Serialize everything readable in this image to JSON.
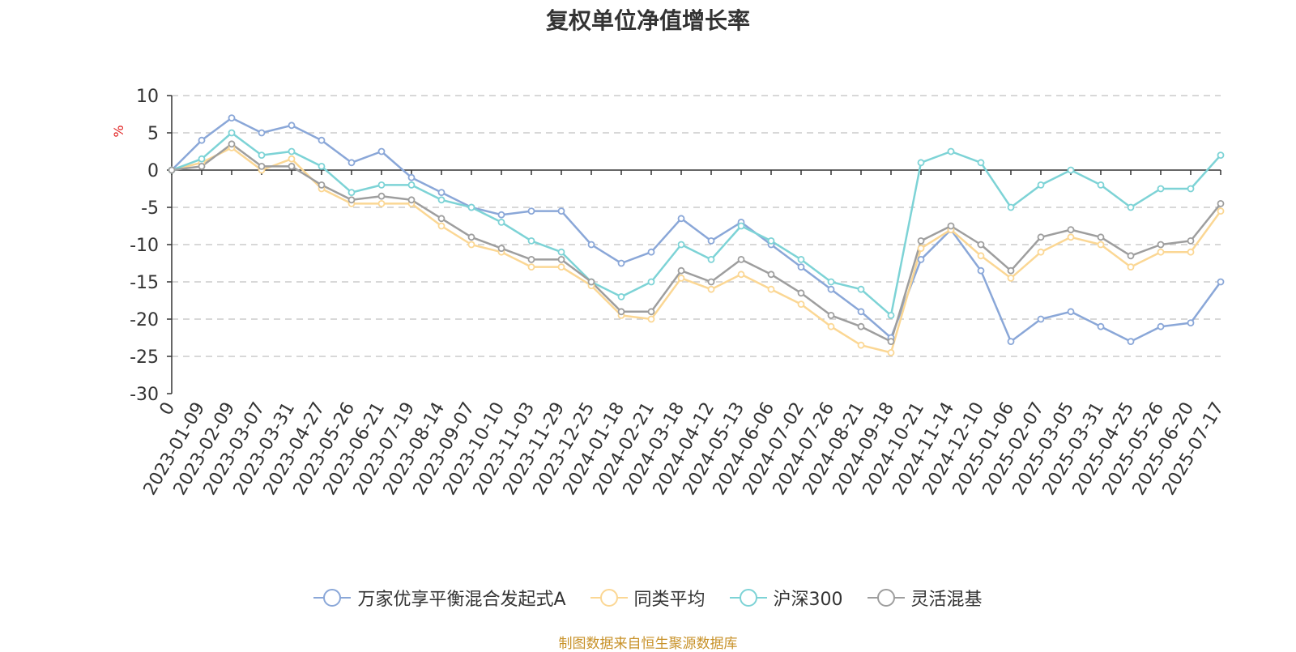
{
  "chart_data": {
    "type": "line",
    "title": "复权单位净值增长率",
    "ylabel": "%",
    "ylim": [
      -30,
      10
    ],
    "yticks": [
      10,
      5,
      0,
      -5,
      -10,
      -15,
      -20,
      -25,
      -30
    ],
    "grid": true,
    "legend_position": "bottom",
    "x_tick_labels": [
      "0",
      "2023-01-09",
      "2023-02-09",
      "2023-03-07",
      "2023-03-31",
      "2023-04-27",
      "2023-05-26",
      "2023-06-21",
      "2023-07-19",
      "2023-08-14",
      "2023-09-07",
      "2023-10-10",
      "2023-11-03",
      "2023-11-29",
      "2023-12-25",
      "2024-01-18",
      "2024-02-21",
      "2024-03-18",
      "2024-04-12",
      "2024-05-13",
      "2024-06-06",
      "2024-07-02",
      "2024-07-26",
      "2024-08-21",
      "2024-09-18",
      "2024-10-21",
      "2024-11-14",
      "2024-12-10",
      "2025-01-06",
      "2025-02-07",
      "2025-03-05",
      "2025-03-31",
      "2025-04-25",
      "2025-05-26",
      "2025-06-20",
      "2025-07-17"
    ],
    "x": [
      "0",
      "2023-01-09",
      "2023-02-09",
      "2023-03-07",
      "2023-03-31",
      "2023-04-27",
      "2023-05-26",
      "2023-06-21",
      "2023-07-19",
      "2023-08-14",
      "2023-09-07",
      "2023-10-10",
      "2023-11-03",
      "2023-11-29",
      "2023-12-25",
      "2024-01-18",
      "2024-02-21",
      "2024-03-18",
      "2024-04-12",
      "2024-05-13",
      "2024-06-06",
      "2024-07-02",
      "2024-07-26",
      "2024-08-21",
      "2024-09-18",
      "2024-10-21",
      "2024-11-14",
      "2024-12-10",
      "2025-01-06",
      "2025-02-07",
      "2025-03-05",
      "2025-03-31",
      "2025-04-25",
      "2025-05-26",
      "2025-06-20",
      "2025-07-17"
    ],
    "series": [
      {
        "name": "万家优享平衡混合发起式A",
        "color": "#8aa7d8",
        "values": [
          0,
          4,
          7,
          5,
          6,
          4,
          1,
          2.5,
          -1,
          -3,
          -5,
          -6,
          -5.5,
          -5.5,
          -10,
          -12.5,
          -11,
          -6.5,
          -9.5,
          -7,
          -10,
          -13,
          -16,
          -19,
          -22.5,
          -12,
          -8,
          -13.5,
          -23,
          -20,
          -19,
          -21,
          -23,
          -21,
          -20.5,
          -15
        ]
      },
      {
        "name": "同类平均",
        "color": "#fbd794",
        "values": [
          0,
          1,
          3,
          0,
          1.5,
          -2.5,
          -4.5,
          -4.5,
          -4.5,
          -7.5,
          -10,
          -11,
          -13,
          -13,
          -15.5,
          -19.5,
          -20,
          -14.5,
          -16,
          -14,
          -16,
          -18,
          -21,
          -23.5,
          -24.5,
          -10.5,
          -8,
          -11.5,
          -14.5,
          -11,
          -9,
          -10,
          -13,
          -11,
          -11,
          -5.5
        ]
      },
      {
        "name": "沪深300",
        "color": "#7dd3d6",
        "values": [
          0,
          1.5,
          5,
          2,
          2.5,
          0.5,
          -3,
          -2,
          -2,
          -4,
          -5,
          -7,
          -9.5,
          -11,
          -15,
          -17,
          -15,
          -10,
          -12,
          -7.5,
          -9.5,
          -12,
          -15,
          -16,
          -19.5,
          1,
          2.5,
          1,
          -5,
          -2,
          0,
          -2,
          -5,
          -2.5,
          -2.5,
          2
        ]
      },
      {
        "name": "灵活混基",
        "color": "#9e9e9e",
        "values": [
          0,
          0.5,
          3.5,
          0.5,
          0.5,
          -2,
          -4,
          -3.5,
          -4,
          -6.5,
          -9,
          -10.5,
          -12,
          -12,
          -15,
          -19,
          -19,
          -13.5,
          -15,
          -12,
          -14,
          -16.5,
          -19.5,
          -21,
          -23,
          -9.5,
          -7.5,
          -10,
          -13.5,
          -9,
          -8,
          -9,
          -11.5,
          -10,
          -9.5,
          -4.5
        ]
      }
    ]
  },
  "source_note": "制图数据来自恒生聚源数据库"
}
